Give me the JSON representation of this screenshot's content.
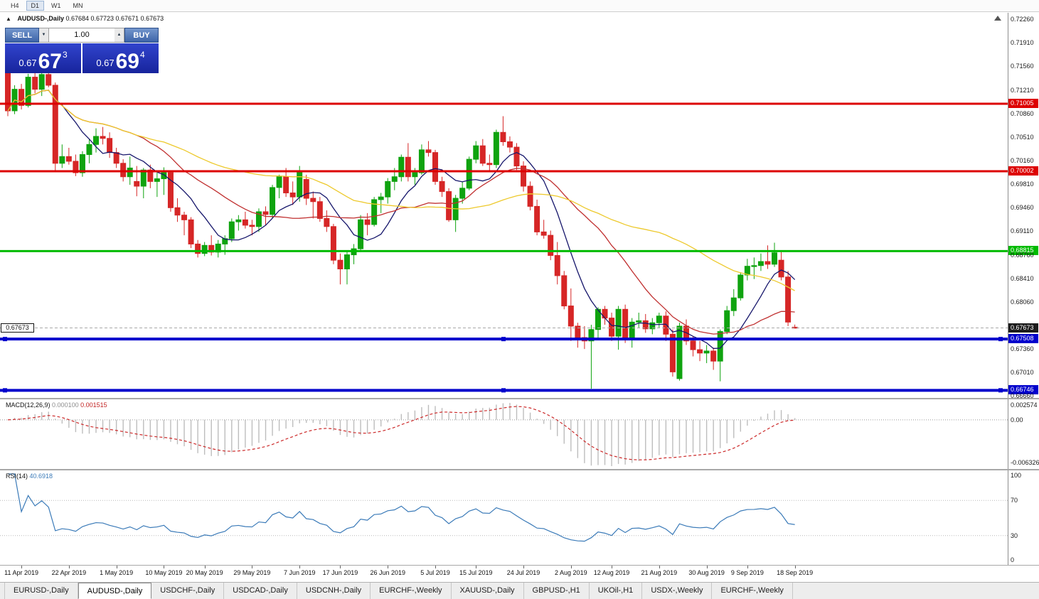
{
  "toolbar": {
    "timeframes": [
      "H4",
      "D1",
      "W1",
      "MN"
    ],
    "active_timeframe": "D1"
  },
  "chart": {
    "title": "AUDUSD-,Daily",
    "ohlc": "0.67684 0.67723 0.67671 0.67673",
    "collapse_icon": "▲",
    "trade_panel": {
      "sell_label": "SELL",
      "buy_label": "BUY",
      "volume": "1.00",
      "spin_down_icon": "▼",
      "spin_up_icon": "▲",
      "sell_price": {
        "prefix": "0.67",
        "big": "67",
        "sup": "3"
      },
      "buy_price": {
        "prefix": "0.67",
        "big": "69",
        "sup": "4"
      }
    },
    "up_color": "#0fa30f",
    "down_color": "#d62626",
    "price_axis_ticks": [
      "0.72260",
      "0.71910",
      "0.71560",
      "0.71210",
      "0.70860",
      "0.70510",
      "0.70160",
      "0.69810",
      "0.69460",
      "0.69110",
      "0.68760",
      "0.68410",
      "0.68060",
      "0.67360",
      "0.67010",
      "0.66660"
    ],
    "hlines": [
      {
        "price": 0.71005,
        "label": "0.71005",
        "color": "#dd0000",
        "thickness": 3,
        "handles": false
      },
      {
        "price": 0.70002,
        "label": "0.70002",
        "color": "#dd0000",
        "thickness": 3,
        "handles": false
      },
      {
        "price": 0.68815,
        "label": "0.68815",
        "color": "#00bb00",
        "thickness": 3,
        "handles": false
      },
      {
        "price": 0.67508,
        "label": "0.67508",
        "color": "#0000cc",
        "thickness": 4,
        "handles": true
      },
      {
        "price": 0.66746,
        "label": "0.66746",
        "color": "#0000cc",
        "thickness": 4,
        "handles": true
      }
    ],
    "bid": {
      "value": 0.67673,
      "label": "0.67673"
    },
    "moving_averages": [
      {
        "period": 8,
        "color": "#16166b"
      },
      {
        "period": 20,
        "color": "#c03030"
      },
      {
        "period": 45,
        "color": "#edc92c"
      }
    ],
    "candles": [
      [
        0.7146,
        0.7152,
        0.7082,
        0.709
      ],
      [
        0.709,
        0.7128,
        0.7085,
        0.7122
      ],
      [
        0.7122,
        0.713,
        0.7092,
        0.7098
      ],
      [
        0.7098,
        0.7145,
        0.7095,
        0.714
      ],
      [
        0.714,
        0.7151,
        0.7116,
        0.7122
      ],
      [
        0.7122,
        0.7149,
        0.7112,
        0.7144
      ],
      [
        0.7144,
        0.715,
        0.7125,
        0.7128
      ],
      [
        0.7128,
        0.7132,
        0.7,
        0.7012
      ],
      [
        0.7012,
        0.704,
        0.7005,
        0.7022
      ],
      [
        0.7022,
        0.7035,
        0.701,
        0.7015
      ],
      [
        0.7015,
        0.7025,
        0.6993,
        0.6998
      ],
      [
        0.6998,
        0.703,
        0.6992,
        0.7025
      ],
      [
        0.7025,
        0.7048,
        0.7012,
        0.704
      ],
      [
        0.704,
        0.7064,
        0.7028,
        0.7052
      ],
      [
        0.7052,
        0.7066,
        0.704,
        0.7049
      ],
      [
        0.7049,
        0.7058,
        0.702,
        0.7028
      ],
      [
        0.7028,
        0.7035,
        0.7005,
        0.7012
      ],
      [
        0.7012,
        0.7018,
        0.6985,
        0.6992
      ],
      [
        0.6992,
        0.7022,
        0.698,
        0.7005
      ],
      [
        0.6985,
        0.7008,
        0.6963,
        0.6978
      ],
      [
        0.6978,
        0.7005,
        0.696,
        0.7002
      ],
      [
        0.7002,
        0.701,
        0.6975,
        0.6985
      ],
      [
        0.6985,
        0.6998,
        0.6962,
        0.6989
      ],
      [
        0.6989,
        0.7006,
        0.6965,
        0.6998
      ],
      [
        0.6998,
        0.7,
        0.694,
        0.6946
      ],
      [
        0.6946,
        0.696,
        0.6925,
        0.6935
      ],
      [
        0.6935,
        0.694,
        0.6905,
        0.6928
      ],
      [
        0.6928,
        0.6932,
        0.6886,
        0.6892
      ],
      [
        0.6892,
        0.6898,
        0.6872,
        0.6878
      ],
      [
        0.6878,
        0.6895,
        0.6874,
        0.689
      ],
      [
        0.689,
        0.6905,
        0.6875,
        0.688
      ],
      [
        0.688,
        0.6898,
        0.6872,
        0.6892
      ],
      [
        0.6892,
        0.6905,
        0.6876,
        0.69
      ],
      [
        0.69,
        0.693,
        0.6895,
        0.6925
      ],
      [
        0.6925,
        0.6935,
        0.6912,
        0.6928
      ],
      [
        0.6928,
        0.694,
        0.6915,
        0.692
      ],
      [
        0.692,
        0.6928,
        0.6905,
        0.6918
      ],
      [
        0.6918,
        0.6945,
        0.691,
        0.694
      ],
      [
        0.694,
        0.6948,
        0.692,
        0.6936
      ],
      [
        0.6936,
        0.698,
        0.693,
        0.6976
      ],
      [
        0.6976,
        0.6995,
        0.696,
        0.6992
      ],
      [
        0.6992,
        0.7005,
        0.6962,
        0.6968
      ],
      [
        0.6968,
        0.6985,
        0.695,
        0.6962
      ],
      [
        0.6962,
        0.7008,
        0.6955,
        0.7
      ],
      [
        0.6988,
        0.6995,
        0.695,
        0.696
      ],
      [
        0.696,
        0.697,
        0.693,
        0.6955
      ],
      [
        0.6955,
        0.6962,
        0.6925,
        0.693
      ],
      [
        0.693,
        0.6942,
        0.691,
        0.6918
      ],
      [
        0.6918,
        0.6922,
        0.6862,
        0.6868
      ],
      [
        0.6868,
        0.6878,
        0.6832,
        0.6855
      ],
      [
        0.6855,
        0.6882,
        0.6832,
        0.6876
      ],
      [
        0.6876,
        0.6892,
        0.6862,
        0.6885
      ],
      [
        0.6885,
        0.6935,
        0.688,
        0.6928
      ],
      [
        0.6928,
        0.6938,
        0.6905,
        0.6921
      ],
      [
        0.6921,
        0.6962,
        0.6918,
        0.6958
      ],
      [
        0.6958,
        0.6968,
        0.6938,
        0.6962
      ],
      [
        0.6962,
        0.699,
        0.6952,
        0.6985
      ],
      [
        0.6985,
        0.7005,
        0.6972,
        0.6992
      ],
      [
        0.6992,
        0.7025,
        0.6985,
        0.7021
      ],
      [
        0.7021,
        0.7042,
        0.6985,
        0.6992
      ],
      [
        0.6992,
        0.7005,
        0.698,
        0.6998
      ],
      [
        0.6998,
        0.704,
        0.6995,
        0.7032
      ],
      [
        0.7032,
        0.7045,
        0.7022,
        0.7028
      ],
      [
        0.7028,
        0.7032,
        0.698,
        0.6985
      ],
      [
        0.6985,
        0.6992,
        0.6962,
        0.697
      ],
      [
        0.697,
        0.6975,
        0.6925,
        0.6928
      ],
      [
        0.6928,
        0.6965,
        0.691,
        0.696
      ],
      [
        0.696,
        0.6985,
        0.6952,
        0.6975
      ],
      [
        0.6975,
        0.7022,
        0.6972,
        0.7018
      ],
      [
        0.7018,
        0.7045,
        0.7012,
        0.7038
      ],
      [
        0.7038,
        0.7048,
        0.7008,
        0.7012
      ],
      [
        0.7012,
        0.7025,
        0.7,
        0.701
      ],
      [
        0.701,
        0.7062,
        0.7005,
        0.7058
      ],
      [
        0.7058,
        0.7082,
        0.7038,
        0.7044
      ],
      [
        0.7044,
        0.7052,
        0.7028,
        0.7036
      ],
      [
        0.7036,
        0.7042,
        0.7002,
        0.7008
      ],
      [
        0.7008,
        0.7015,
        0.697,
        0.6978
      ],
      [
        0.6978,
        0.6985,
        0.6942,
        0.6948
      ],
      [
        0.6948,
        0.6958,
        0.6905,
        0.691
      ],
      [
        0.691,
        0.6928,
        0.69,
        0.6905
      ],
      [
        0.6905,
        0.6912,
        0.6868,
        0.6875
      ],
      [
        0.6875,
        0.6895,
        0.6832,
        0.6845
      ],
      [
        0.6845,
        0.6852,
        0.6795,
        0.68
      ],
      [
        0.68,
        0.6826,
        0.6748,
        0.677
      ],
      [
        0.677,
        0.6775,
        0.6738,
        0.6753
      ],
      [
        0.6753,
        0.677,
        0.6736,
        0.6748
      ],
      [
        0.6748,
        0.6772,
        0.6677,
        0.6765
      ],
      [
        0.6765,
        0.6798,
        0.675,
        0.6795
      ],
      [
        0.6795,
        0.68,
        0.6772,
        0.6782
      ],
      [
        0.6782,
        0.679,
        0.6748,
        0.6755
      ],
      [
        0.6755,
        0.68,
        0.6735,
        0.6795
      ],
      [
        0.6795,
        0.6802,
        0.6745,
        0.675
      ],
      [
        0.675,
        0.6782,
        0.6738,
        0.6776
      ],
      [
        0.6776,
        0.679,
        0.6768,
        0.6778
      ],
      [
        0.6778,
        0.6788,
        0.676,
        0.6766
      ],
      [
        0.6766,
        0.6782,
        0.6758,
        0.6775
      ],
      [
        0.6775,
        0.679,
        0.6768,
        0.6785
      ],
      [
        0.6785,
        0.6792,
        0.6748,
        0.6758
      ],
      [
        0.6758,
        0.6765,
        0.6695,
        0.6702
      ],
      [
        0.6692,
        0.6775,
        0.6689,
        0.677
      ],
      [
        0.677,
        0.678,
        0.6742,
        0.6748
      ],
      [
        0.6748,
        0.6755,
        0.6725,
        0.6735
      ],
      [
        0.6735,
        0.6748,
        0.6718,
        0.673
      ],
      [
        0.673,
        0.6742,
        0.6715,
        0.6733
      ],
      [
        0.6733,
        0.6738,
        0.6705,
        0.6718
      ],
      [
        0.6718,
        0.6765,
        0.6688,
        0.6762
      ],
      [
        0.6762,
        0.68,
        0.6758,
        0.6793
      ],
      [
        0.6793,
        0.6825,
        0.6785,
        0.6812
      ],
      [
        0.6812,
        0.685,
        0.6808,
        0.6846
      ],
      [
        0.6846,
        0.687,
        0.6838,
        0.6859
      ],
      [
        0.6859,
        0.6872,
        0.684,
        0.686
      ],
      [
        0.686,
        0.6878,
        0.6852,
        0.6866
      ],
      [
        0.6866,
        0.689,
        0.6855,
        0.6862
      ],
      [
        0.6862,
        0.6894,
        0.6858,
        0.6879
      ],
      [
        0.6868,
        0.688,
        0.6838,
        0.6843
      ],
      [
        0.6843,
        0.6852,
        0.677,
        0.6776
      ],
      [
        0.67684,
        0.67723,
        0.67671,
        0.67673
      ]
    ],
    "date_labels": [
      [
        2,
        "11 Apr 2019"
      ],
      [
        9,
        "22 Apr 2019"
      ],
      [
        16,
        "1 May 2019"
      ],
      [
        23,
        "10 May 2019"
      ],
      [
        29,
        "20 May 2019"
      ],
      [
        36,
        "29 May 2019"
      ],
      [
        43,
        "7 Jun 2019"
      ],
      [
        49,
        "17 Jun 2019"
      ],
      [
        56,
        "26 Jun 2019"
      ],
      [
        63,
        "5 Jul 2019"
      ],
      [
        69,
        "15 Jul 2019"
      ],
      [
        76,
        "24 Jul 2019"
      ],
      [
        83,
        "2 Aug 2019"
      ],
      [
        89,
        "12 Aug 2019"
      ],
      [
        96,
        "21 Aug 2019"
      ],
      [
        103,
        "30 Aug 2019"
      ],
      [
        109,
        "9 Sep 2019"
      ],
      [
        116,
        "18 Sep 2019"
      ]
    ]
  },
  "macd": {
    "name": "MACD(12,26,9)",
    "value_main": "0.000100",
    "value_signal": "0.001515",
    "scale_top": "0.002574",
    "scale_zero": "0.00",
    "scale_bottom": "-0.006326",
    "histogram_color": "#bdbdbd",
    "signal_color": "#cc2929"
  },
  "rsi": {
    "name": "RSI(14)",
    "value": "40.6918",
    "scale_labels": [
      "100",
      "70",
      "30",
      "0"
    ],
    "levels": [
      70,
      30
    ],
    "line_color": "#3a7ab8"
  },
  "tabs": [
    {
      "label": "EURUSD-,Daily"
    },
    {
      "label": "AUDUSD-,Daily",
      "active": true
    },
    {
      "label": "USDCHF-,Daily"
    },
    {
      "label": "USDCAD-,Daily"
    },
    {
      "label": "USDCNH-,Daily"
    },
    {
      "label": "EURCHF-,Weekly"
    },
    {
      "label": "XAUUSD-,Daily"
    },
    {
      "label": "GBPUSD-,H1"
    },
    {
      "label": "UKOil-,H1"
    },
    {
      "label": "USDX-,Weekly"
    },
    {
      "label": "EURCHF-,Weekly"
    }
  ]
}
